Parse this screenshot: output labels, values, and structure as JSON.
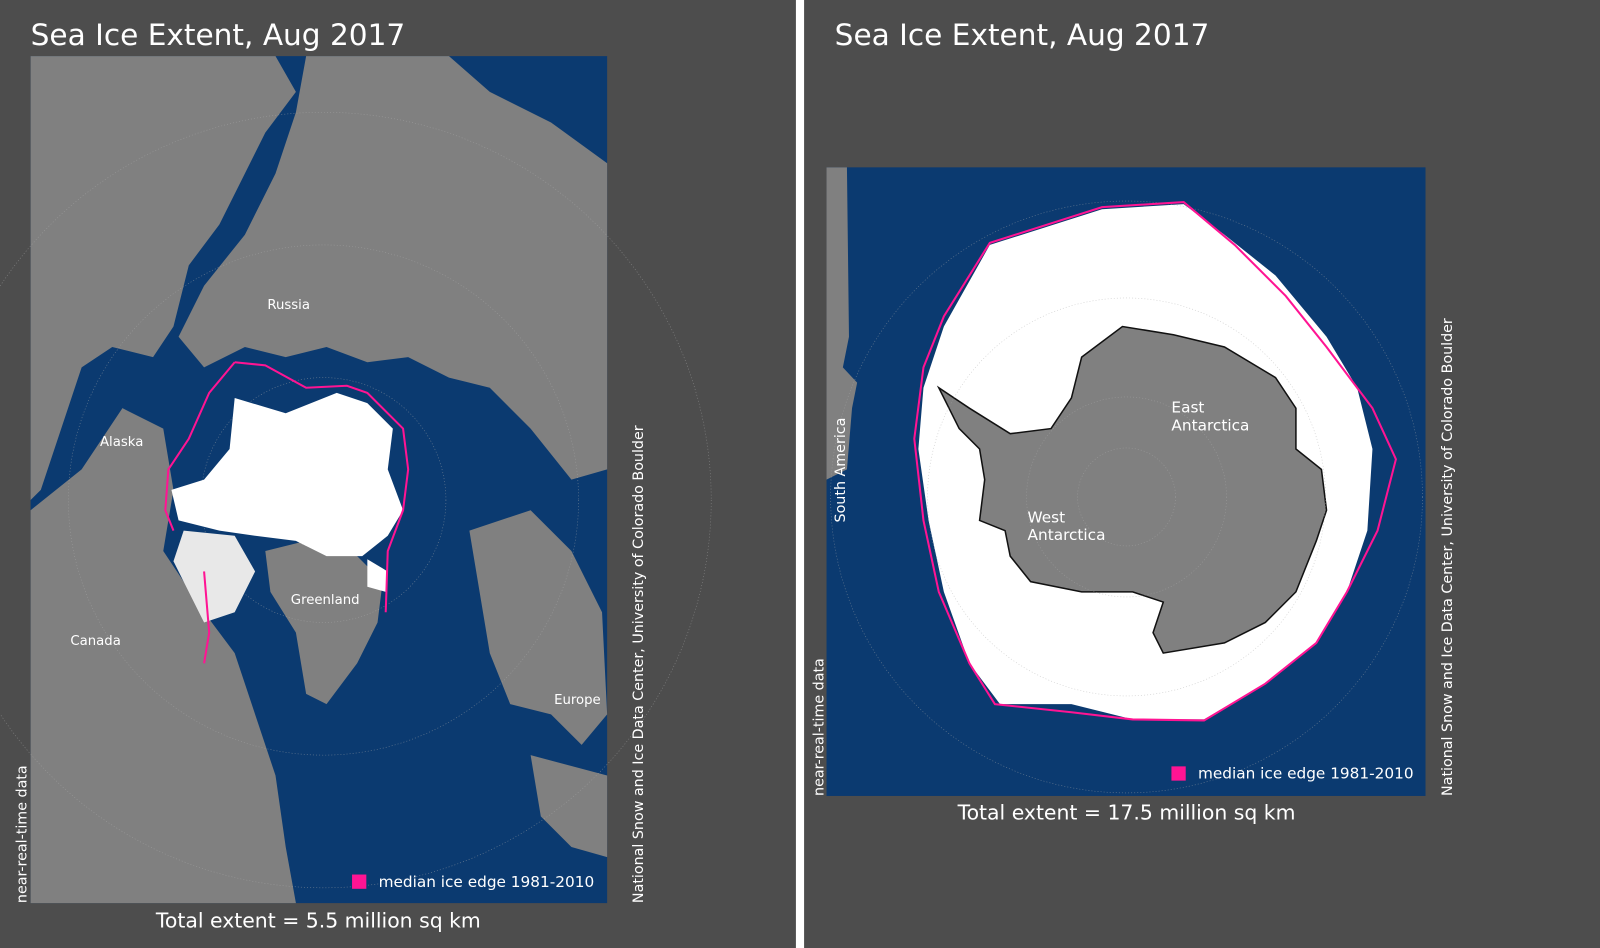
{
  "panels": [
    {
      "title": "Sea Ice Extent, Aug 2017",
      "labels": [
        "Russia",
        "Alaska",
        "Greenland",
        "Canada",
        "Europe"
      ],
      "legend": "median ice edge 1981-2010",
      "total": "Total extent = 5.5 million sq km",
      "note": "near-real-time data",
      "source": "National Snow and Ice Data Center, University of Colorado Boulder"
    },
    {
      "title": "Sea Ice Extent, Aug 2017",
      "labels": [
        "South America",
        [
          "East",
          "Antarctica"
        ],
        [
          "West",
          "Antarctica"
        ]
      ],
      "legend": "median ice edge 1981-2010",
      "total": "Total extent = 17.5 million sq km",
      "note": "near-real-time data",
      "source": "National Snow and Ice Data Center, University of Colorado Boulder"
    }
  ]
}
